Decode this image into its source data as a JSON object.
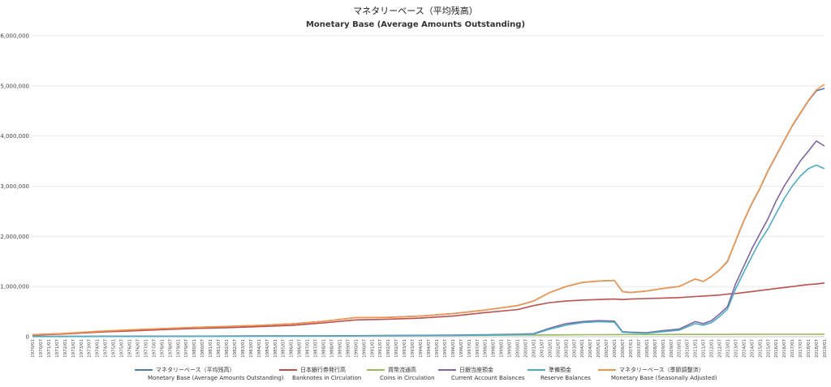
{
  "chart_data": {
    "type": "line",
    "title": "マネタリーベース（平均残高）",
    "subtitle": "Monetary Base (Average Amounts Outstanding)",
    "xlabel": "",
    "ylabel": "",
    "ylim": [
      0,
      6000000
    ],
    "yticks": [
      "0",
      "1,000,000",
      "2,000,000",
      "3,000,000",
      "4,000,000",
      "5,000,000",
      "6,000,000"
    ],
    "ytick_values": [
      0,
      1000000,
      2000000,
      3000000,
      4000000,
      5000000,
      6000000
    ],
    "grid": true,
    "legend_position": "bottom",
    "xrange": [
      "1970/01",
      "2019/01"
    ],
    "xticks": [
      "1970/01",
      "1970/07",
      "1971/01",
      "1971/07",
      "1972/01",
      "1972/07",
      "1973/01",
      "1973/07",
      "1974/01",
      "1974/07",
      "1975/01",
      "1975/07",
      "1976/01",
      "1976/07",
      "1977/01",
      "1977/07",
      "1978/01",
      "1978/07",
      "1979/01",
      "1979/07",
      "1980/01",
      "1980/07",
      "1981/01",
      "1981/07",
      "1982/01",
      "1982/07",
      "1983/01",
      "1983/07",
      "1984/01",
      "1984/07",
      "1985/01",
      "1985/07",
      "1986/01",
      "1986/07",
      "1987/01",
      "1987/07",
      "1988/01",
      "1988/07",
      "1989/01",
      "1989/07",
      "1990/01",
      "1990/07",
      "1991/01",
      "1991/07",
      "1992/01",
      "1992/07",
      "1993/01",
      "1993/07",
      "1994/01",
      "1994/07",
      "1995/01",
      "1995/07",
      "1996/01",
      "1996/07",
      "1997/01",
      "1997/07",
      "1998/01",
      "1998/07",
      "1999/01",
      "1999/07",
      "2000/01",
      "2000/07",
      "2001/01",
      "2001/07",
      "2002/01",
      "2002/07",
      "2003/01",
      "2003/07",
      "2004/01",
      "2004/07",
      "2005/01",
      "2005/07",
      "2006/01",
      "2006/07",
      "2007/01",
      "2007/07",
      "2008/01",
      "2008/07",
      "2009/01",
      "2009/07",
      "2010/01",
      "2010/07",
      "2011/01",
      "2011/07",
      "2012/01",
      "2012/07",
      "2013/01",
      "2013/07",
      "2014/01",
      "2014/07",
      "2015/01",
      "2015/07",
      "2016/01",
      "2016/07",
      "2017/01",
      "2017/07",
      "2018/01",
      "2018/07",
      "2019/01"
    ],
    "x": [
      "1970/01",
      "1972/01",
      "1974/01",
      "1976/01",
      "1978/01",
      "1980/01",
      "1982/01",
      "1984/01",
      "1986/01",
      "1988/01",
      "1990/01",
      "1992/01",
      "1994/01",
      "1996/01",
      "1998/01",
      "2000/01",
      "2001/01",
      "2002/01",
      "2003/01",
      "2004/01",
      "2005/01",
      "2006/01",
      "2006/07",
      "2007/01",
      "2008/01",
      "2009/01",
      "2010/01",
      "2011/01",
      "2011/07",
      "2012/01",
      "2012/07",
      "2013/01",
      "2013/07",
      "2014/01",
      "2014/07",
      "2015/01",
      "2015/07",
      "2016/01",
      "2016/07",
      "2017/01",
      "2017/07",
      "2018/01",
      "2018/07",
      "2019/01"
    ],
    "series": [
      {
        "name": "マネタリーベース（平均残高）",
        "name_en": "Monetary Base (Average Amounts Outstanding)",
        "color": "#4e79b5",
        "values": [
          40000,
          65000,
          105000,
          135000,
          160000,
          185000,
          205000,
          225000,
          255000,
          305000,
          380000,
          385000,
          410000,
          460000,
          530000,
          620000,
          710000,
          880000,
          1000000,
          1080000,
          1110000,
          1120000,
          900000,
          880000,
          910000,
          960000,
          1000000,
          1150000,
          1100000,
          1200000,
          1330000,
          1500000,
          1900000,
          2300000,
          2650000,
          2950000,
          3300000,
          3600000,
          3900000,
          4200000,
          4450000,
          4700000,
          4900000,
          4950000
        ]
      },
      {
        "name": "日本銀行券発行高",
        "name_en": "Banknotes in Circulation",
        "color": "#c0504d",
        "values": [
          30000,
          55000,
          90000,
          115000,
          140000,
          165000,
          180000,
          200000,
          225000,
          275000,
          335000,
          350000,
          370000,
          410000,
          480000,
          540000,
          620000,
          680000,
          710000,
          730000,
          740000,
          750000,
          740000,
          750000,
          760000,
          770000,
          780000,
          800000,
          810000,
          820000,
          830000,
          850000,
          860000,
          880000,
          900000,
          920000,
          940000,
          960000,
          980000,
          1000000,
          1020000,
          1040000,
          1050000,
          1070000
        ]
      },
      {
        "name": "貨幣流通高",
        "name_en": "Coins in Circulation",
        "color": "#9bbb59",
        "values": [
          3000,
          4000,
          5000,
          6000,
          8000,
          10000,
          12000,
          14000,
          16000,
          18000,
          20000,
          22000,
          24000,
          26000,
          28000,
          32000,
          34000,
          36000,
          38000,
          40000,
          41000,
          42000,
          43000,
          43000,
          44000,
          44000,
          45000,
          45000,
          45000,
          46000,
          46000,
          46000,
          47000,
          47000,
          47000,
          47000,
          48000,
          48000,
          48000,
          49000,
          49000,
          49000,
          50000,
          50000
        ]
      },
      {
        "name": "日銀当座預金",
        "name_en": "Current Account Balances",
        "color": "#8064a2",
        "values": [
          6000,
          6000,
          8000,
          10000,
          10000,
          12000,
          13000,
          14000,
          15000,
          16000,
          20000,
          25000,
          28000,
          30000,
          40000,
          50000,
          60000,
          170000,
          260000,
          300000,
          320000,
          310000,
          100000,
          90000,
          80000,
          120000,
          150000,
          300000,
          260000,
          320000,
          450000,
          600000,
          1050000,
          1400000,
          1750000,
          2050000,
          2350000,
          2700000,
          3000000,
          3250000,
          3500000,
          3700000,
          3900000,
          3800000
        ]
      },
      {
        "name": "準備預金",
        "name_en": "Reserve Balances",
        "color": "#4bacc6",
        "values": [
          5000,
          5000,
          6000,
          8000,
          8000,
          9000,
          10000,
          11000,
          12000,
          13000,
          16000,
          20000,
          22000,
          25000,
          34000,
          42000,
          50000,
          150000,
          230000,
          280000,
          300000,
          290000,
          90000,
          80000,
          70000,
          100000,
          130000,
          260000,
          230000,
          280000,
          400000,
          550000,
          950000,
          1280000,
          1600000,
          1900000,
          2150000,
          2450000,
          2750000,
          3000000,
          3200000,
          3350000,
          3420000,
          3350000
        ]
      },
      {
        "name": "マネタリーベース（季節調整済）",
        "name_en": "Monetary Base (Seasonally Adjusted)",
        "color": "#f79646",
        "values": [
          41000,
          66000,
          106000,
          136000,
          161000,
          186000,
          206000,
          226000,
          256000,
          306000,
          381000,
          386000,
          411000,
          461000,
          531000,
          621000,
          711000,
          881000,
          1001000,
          1081000,
          1111000,
          1121000,
          901000,
          881000,
          911000,
          961000,
          1001000,
          1151000,
          1101000,
          1201000,
          1331000,
          1510000,
          1910000,
          2310000,
          2660000,
          2960000,
          3310000,
          3610000,
          3910000,
          4210000,
          4460000,
          4710000,
          4920000,
          5030000
        ]
      }
    ]
  }
}
